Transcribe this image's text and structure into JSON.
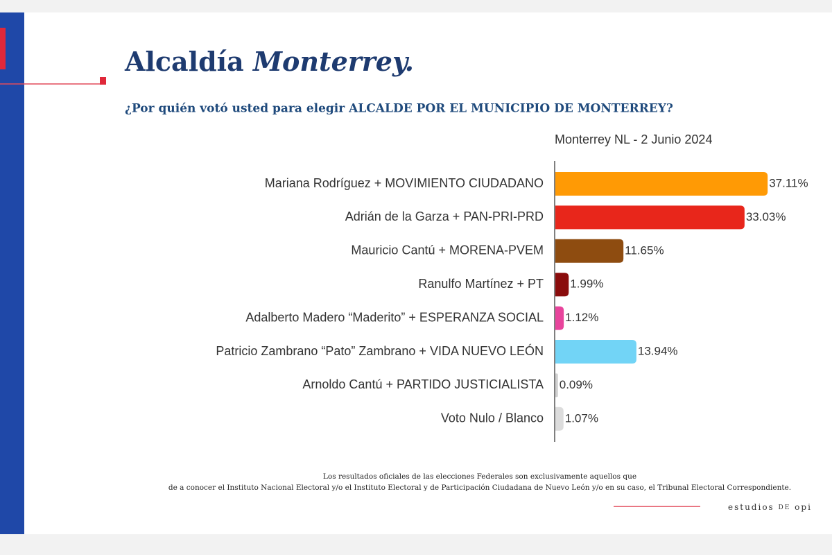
{
  "chart_data": {
    "type": "bar",
    "orientation": "horizontal",
    "title": "Alcaldía",
    "title_emphasis": "Monterrey.",
    "subtitle": "¿Por quién votó usted para elegir ALCALDE POR EL MUNICIPIO DE MONTERREY?",
    "series_label": "Monterrey NL - 2 Junio 2024",
    "categories": [
      "Mariana Rodríguez + MOVIMIENTO CIUDADANO",
      "Adrián de la Garza + PAN-PRI-PRD",
      "Mauricio Cantú + MORENA-PVEM",
      "Ranulfo Martínez + PT",
      "Adalberto Madero “Maderito” + ESPERANZA SOCIAL",
      "Patricio Zambrano “Pato” Zambrano + VIDA NUEVO LEÓN",
      "Arnoldo Cantú + PARTIDO JUSTICIALISTA",
      "Voto Nulo / Blanco"
    ],
    "values": [
      37.11,
      33.03,
      11.65,
      1.99,
      1.12,
      13.94,
      0.09,
      1.07
    ],
    "value_labels": [
      "37.11%",
      "33.03%",
      "11.65%",
      "1.99%",
      "1.12%",
      "13.94%",
      "0.09%",
      "1.07%"
    ],
    "colors": [
      "#ff9a05",
      "#e8261b",
      "#8e4c10",
      "#8a0c0c",
      "#e8449c",
      "#72d4f6",
      "#d0d0d0",
      "#dcdcdc"
    ],
    "footnote": [
      "Los resultados oficiales de las elecciones Federales son exclusivamente aquellos que",
      "de a conocer el Instituto Nacional Electoral y/o el Instituto Electoral y de Participación Ciudadana de Nuevo León y/o en su caso, el Tribunal Electoral Correspondiente."
    ],
    "brand": [
      "estudios",
      "DE",
      "opi"
    ]
  }
}
